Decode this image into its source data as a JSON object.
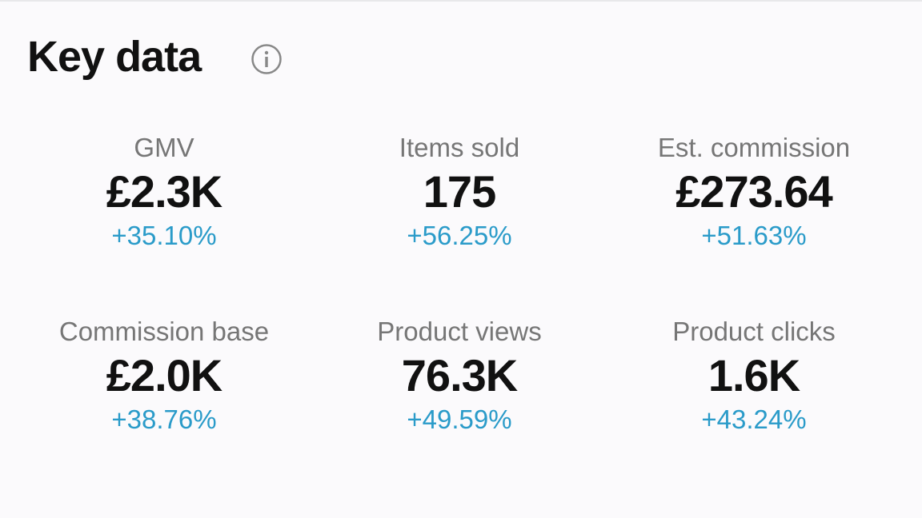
{
  "title": "Key data",
  "metrics": [
    {
      "label": "GMV",
      "value": "£2.3K",
      "change": "+35.10%"
    },
    {
      "label": "Items sold",
      "value": "175",
      "change": "+56.25%"
    },
    {
      "label": "Est. commission",
      "value": "£273.64",
      "change": "+51.63%"
    },
    {
      "label": "Commission base",
      "value": "£2.0K",
      "change": "+38.76%"
    },
    {
      "label": "Product views",
      "value": "76.3K",
      "change": "+49.59%"
    },
    {
      "label": "Product clicks",
      "value": "1.6K",
      "change": "+43.24%"
    }
  ]
}
